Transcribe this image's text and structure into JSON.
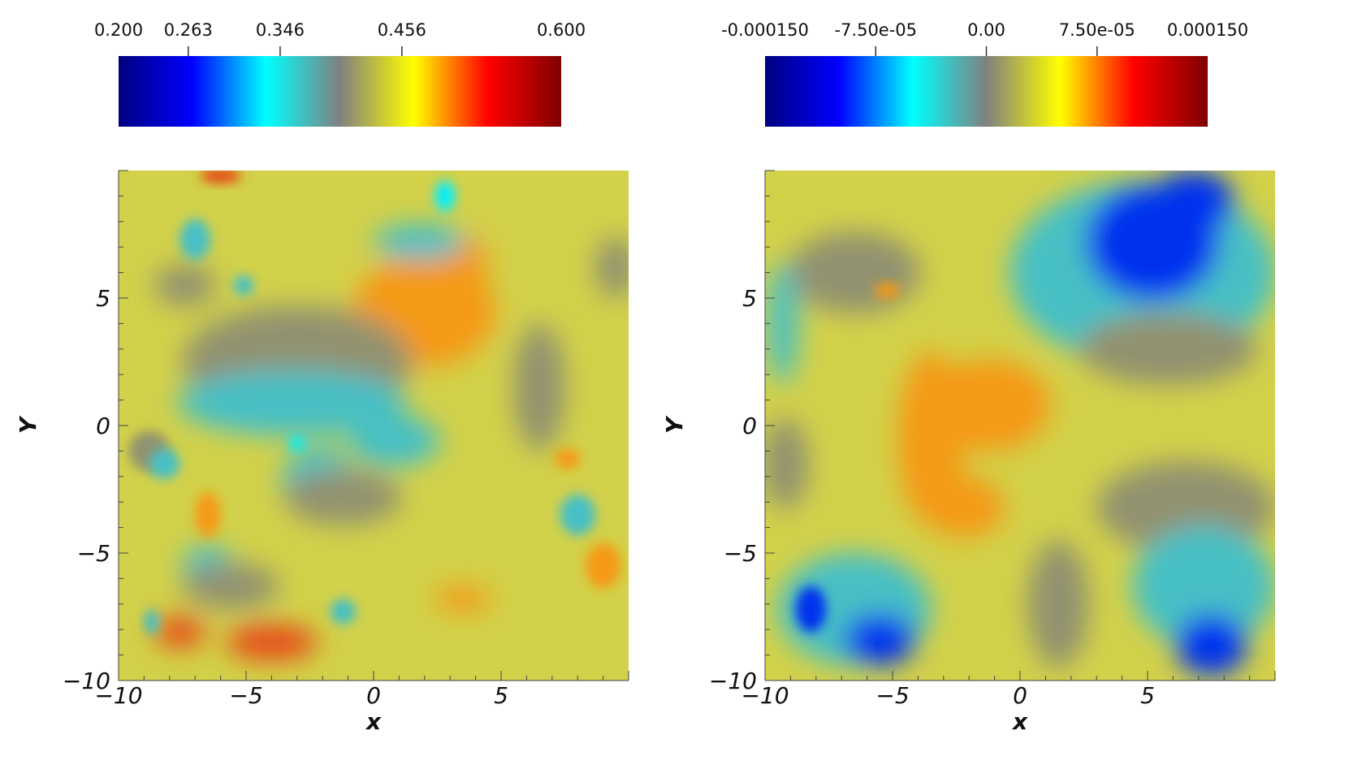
{
  "colormap": [
    "#00007f",
    "#0000ff",
    "#00ffff",
    "#808080",
    "#ffff00",
    "#ff0000",
    "#7f0000"
  ],
  "field_colors": {
    "yellow": "#d2d14a",
    "gray": "#929270",
    "cyan": "#47c0c5",
    "bright_cyan": "#00f0ff",
    "blue": "#0033ee",
    "orange": "#f59a12",
    "red": "#e64a12"
  },
  "chart_data": [
    {
      "type": "heatmap",
      "title": "",
      "xlabel": "x",
      "ylabel": "Y",
      "xlim": [
        -10,
        10
      ],
      "ylim": [
        -10,
        10
      ],
      "x_ticks": [
        {
          "value": -10,
          "label": "−10"
        },
        {
          "value": -5,
          "label": "−5"
        },
        {
          "value": 0,
          "label": "0"
        },
        {
          "value": 5,
          "label": "5"
        }
      ],
      "y_ticks": [
        {
          "value": -10,
          "label": "−10"
        },
        {
          "value": -5,
          "label": "−5"
        },
        {
          "value": 0,
          "label": "0"
        },
        {
          "value": 5,
          "label": "5"
        }
      ],
      "colorbar": {
        "range": [
          0.2,
          0.6
        ],
        "ticks": [
          {
            "value": 0.2,
            "label": "0.200"
          },
          {
            "value": 0.263,
            "label": "0.263"
          },
          {
            "value": 0.346,
            "label": "0.346"
          },
          {
            "value": 0.456,
            "label": "0.456"
          },
          {
            "value": 0.6,
            "label": "0.600"
          }
        ]
      },
      "background": "yellow",
      "features": [
        {
          "color": "orange",
          "x": 2.0,
          "y": 4.5,
          "rx": 2.8,
          "ry": 2.2
        },
        {
          "color": "orange",
          "x": 3.2,
          "y": 6.3,
          "rx": 1.3,
          "ry": 1.3
        },
        {
          "color": "gray",
          "x": -3.0,
          "y": 2.5,
          "rx": 4.5,
          "ry": 2.2
        },
        {
          "color": "cyan",
          "x": -3.2,
          "y": 0.9,
          "rx": 4.5,
          "ry": 1.3
        },
        {
          "color": "cyan",
          "x": 0.8,
          "y": -0.6,
          "rx": 1.8,
          "ry": 1.0
        },
        {
          "color": "cyan",
          "x": -2.2,
          "y": -2.2,
          "rx": 1.4,
          "ry": 1.4
        },
        {
          "color": "gray",
          "x": -1.2,
          "y": -2.8,
          "rx": 2.3,
          "ry": 1.1
        },
        {
          "color": "bright_cyan",
          "x": -3.0,
          "y": -0.7,
          "rx": 0.3,
          "ry": 0.3
        },
        {
          "color": "cyan",
          "x": 1.8,
          "y": 7.2,
          "rx": 1.8,
          "ry": 0.7
        },
        {
          "color": "bright_cyan",
          "x": 2.8,
          "y": 9.0,
          "rx": 0.4,
          "ry": 0.6
        },
        {
          "color": "cyan",
          "x": -7.0,
          "y": 7.3,
          "rx": 0.6,
          "ry": 0.8
        },
        {
          "color": "gray",
          "x": -7.4,
          "y": 5.5,
          "rx": 1.2,
          "ry": 0.8
        },
        {
          "color": "cyan",
          "x": -5.1,
          "y": 5.5,
          "rx": 0.4,
          "ry": 0.4
        },
        {
          "color": "gray",
          "x": -8.8,
          "y": -1.0,
          "rx": 0.8,
          "ry": 0.8
        },
        {
          "color": "cyan",
          "x": -8.2,
          "y": -1.5,
          "rx": 0.6,
          "ry": 0.6
        },
        {
          "color": "cyan",
          "x": -6.5,
          "y": -5.5,
          "rx": 1.0,
          "ry": 0.8
        },
        {
          "color": "gray",
          "x": -5.6,
          "y": -6.3,
          "rx": 1.9,
          "ry": 0.9
        },
        {
          "color": "cyan",
          "x": -1.2,
          "y": -7.3,
          "rx": 0.5,
          "ry": 0.5
        },
        {
          "color": "cyan",
          "x": -8.7,
          "y": -7.7,
          "rx": 0.3,
          "ry": 0.5
        },
        {
          "color": "red",
          "x": -7.6,
          "y": -8.1,
          "rx": 1.0,
          "ry": 0.6
        },
        {
          "color": "red",
          "x": -4.0,
          "y": -8.5,
          "rx": 1.8,
          "ry": 0.7
        },
        {
          "color": "orange",
          "x": -6.5,
          "y": -3.5,
          "rx": 0.5,
          "ry": 0.9
        },
        {
          "color": "cyan",
          "x": 8.0,
          "y": -3.5,
          "rx": 0.7,
          "ry": 0.8
        },
        {
          "color": "orange",
          "x": 9.0,
          "y": -5.5,
          "rx": 0.7,
          "ry": 0.9
        },
        {
          "color": "orange",
          "x": 7.6,
          "y": -1.3,
          "rx": 0.5,
          "ry": 0.4
        },
        {
          "color": "orange",
          "x": 3.5,
          "y": -6.8,
          "rx": 1.1,
          "ry": 0.5
        },
        {
          "color": "gray",
          "x": 6.5,
          "y": 1.5,
          "rx": 1.0,
          "ry": 2.5
        },
        {
          "color": "gray",
          "x": 9.5,
          "y": 6.2,
          "rx": 0.8,
          "ry": 1.2
        },
        {
          "color": "red",
          "x": -6.0,
          "y": 9.8,
          "rx": 0.8,
          "ry": 0.3
        }
      ]
    },
    {
      "type": "heatmap",
      "title": "",
      "xlabel": "x",
      "ylabel": "Y",
      "xlim": [
        -10,
        10
      ],
      "ylim": [
        -10,
        10
      ],
      "x_ticks": [
        {
          "value": -10,
          "label": "−10"
        },
        {
          "value": -5,
          "label": "−5"
        },
        {
          "value": 0,
          "label": "0"
        },
        {
          "value": 5,
          "label": "5"
        }
      ],
      "y_ticks": [
        {
          "value": -10,
          "label": "−10"
        },
        {
          "value": -5,
          "label": "−5"
        },
        {
          "value": 0,
          "label": "0"
        },
        {
          "value": 5,
          "label": "5"
        }
      ],
      "colorbar": {
        "range": [
          -0.00015,
          0.00015
        ],
        "ticks": [
          {
            "value": -0.00015,
            "label": "-0.000150"
          },
          {
            "value": -7.5e-05,
            "label": "-7.50e-05"
          },
          {
            "value": 0,
            "label": "0.00"
          },
          {
            "value": 7.5e-05,
            "label": "7.50e-05"
          },
          {
            "value": 0.00015,
            "label": "0.000150"
          }
        ]
      },
      "background": "yellow",
      "features": [
        {
          "color": "cyan",
          "x": 4.8,
          "y": 6.0,
          "rx": 5.2,
          "ry": 3.6
        },
        {
          "color": "gray",
          "x": 5.8,
          "y": 3.0,
          "rx": 3.5,
          "ry": 1.4
        },
        {
          "color": "blue",
          "x": 5.2,
          "y": 7.2,
          "rx": 2.6,
          "ry": 2.3
        },
        {
          "color": "blue",
          "x": 6.8,
          "y": 8.8,
          "rx": 1.6,
          "ry": 1.2
        },
        {
          "color": "orange",
          "x": -3.5,
          "y": -0.5,
          "rx": 1.3,
          "ry": 3.4
        },
        {
          "color": "orange",
          "x": -1.2,
          "y": 0.8,
          "rx": 2.4,
          "ry": 1.8
        },
        {
          "color": "orange",
          "x": -2.2,
          "y": -3.2,
          "rx": 1.6,
          "ry": 1.2
        },
        {
          "color": "gray",
          "x": 6.5,
          "y": -3.2,
          "rx": 3.5,
          "ry": 1.8
        },
        {
          "color": "cyan",
          "x": 7.2,
          "y": -6.3,
          "rx": 2.8,
          "ry": 2.4
        },
        {
          "color": "blue",
          "x": 7.5,
          "y": -8.6,
          "rx": 1.4,
          "ry": 1.2
        },
        {
          "color": "cyan",
          "x": -6.5,
          "y": -7.2,
          "rx": 3.0,
          "ry": 2.2
        },
        {
          "color": "blue",
          "x": -5.5,
          "y": -8.4,
          "rx": 1.4,
          "ry": 1.0
        },
        {
          "color": "blue",
          "x": -8.2,
          "y": -7.2,
          "rx": 0.6,
          "ry": 0.9
        },
        {
          "color": "gray",
          "x": -6.5,
          "y": 6.0,
          "rx": 2.6,
          "ry": 1.6
        },
        {
          "color": "cyan",
          "x": -9.3,
          "y": 4.0,
          "rx": 0.6,
          "ry": 2.4
        },
        {
          "color": "gray",
          "x": -9.2,
          "y": -1.5,
          "rx": 0.9,
          "ry": 1.8
        },
        {
          "color": "orange",
          "x": -5.2,
          "y": 5.3,
          "rx": 0.5,
          "ry": 0.3
        },
        {
          "color": "gray",
          "x": 1.5,
          "y": -7.0,
          "rx": 1.2,
          "ry": 2.5
        }
      ]
    }
  ]
}
